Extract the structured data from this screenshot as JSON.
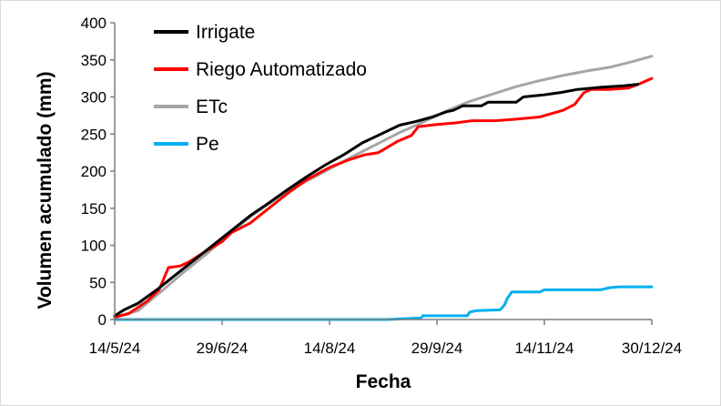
{
  "chart_data": {
    "type": "line",
    "title": "",
    "xlabel": "Fecha",
    "ylabel": "Volumen acumulado (mm)",
    "ylim": [
      0,
      400
    ],
    "yticks": [
      0,
      50,
      100,
      150,
      200,
      250,
      300,
      350,
      400
    ],
    "xlim": [
      "2024-05-14",
      "2024-12-30"
    ],
    "xticks": [
      {
        "date": "2024-05-14",
        "label": "14/5/24"
      },
      {
        "date": "2024-06-29",
        "label": "29/6/24"
      },
      {
        "date": "2024-08-14",
        "label": "14/8/24"
      },
      {
        "date": "2024-09-29",
        "label": "29/9/24"
      },
      {
        "date": "2024-11-14",
        "label": "14/11/24"
      },
      {
        "date": "2024-12-30",
        "label": "30/12/24"
      }
    ],
    "grid": false,
    "legend_position": "top-left",
    "series": [
      {
        "name": "Irrigate",
        "color": "#000000",
        "points": [
          [
            "2024-05-14",
            5
          ],
          [
            "2024-05-18",
            13
          ],
          [
            "2024-05-24",
            22
          ],
          [
            "2024-06-01",
            40
          ],
          [
            "2024-06-09",
            60
          ],
          [
            "2024-06-17",
            80
          ],
          [
            "2024-06-25",
            100
          ],
          [
            "2024-07-03",
            120
          ],
          [
            "2024-07-11",
            140
          ],
          [
            "2024-07-19",
            157
          ],
          [
            "2024-07-27",
            175
          ],
          [
            "2024-08-04",
            192
          ],
          [
            "2024-08-12",
            208
          ],
          [
            "2024-08-20",
            222
          ],
          [
            "2024-08-28",
            238
          ],
          [
            "2024-09-05",
            250
          ],
          [
            "2024-09-13",
            262
          ],
          [
            "2024-09-20",
            267
          ],
          [
            "2024-09-27",
            273
          ],
          [
            "2024-10-03",
            280
          ],
          [
            "2024-10-06",
            282
          ],
          [
            "2024-10-10",
            288
          ],
          [
            "2024-10-18",
            288
          ],
          [
            "2024-10-21",
            293
          ],
          [
            "2024-11-02",
            293
          ],
          [
            "2024-11-05",
            300
          ],
          [
            "2024-11-14",
            303
          ],
          [
            "2024-11-21",
            306
          ],
          [
            "2024-11-28",
            310
          ],
          [
            "2024-12-08",
            313
          ],
          [
            "2024-12-18",
            315
          ],
          [
            "2024-12-24",
            317
          ]
        ]
      },
      {
        "name": "Riego Automatizado",
        "color": "#ff0000",
        "points": [
          [
            "2024-05-14",
            3
          ],
          [
            "2024-05-20",
            8
          ],
          [
            "2024-05-28",
            25
          ],
          [
            "2024-06-02",
            40
          ],
          [
            "2024-06-04",
            55
          ],
          [
            "2024-06-06",
            70
          ],
          [
            "2024-06-11",
            72
          ],
          [
            "2024-06-15",
            78
          ],
          [
            "2024-06-21",
            90
          ],
          [
            "2024-06-29",
            105
          ],
          [
            "2024-07-03",
            117
          ],
          [
            "2024-07-11",
            130
          ],
          [
            "2024-07-19",
            150
          ],
          [
            "2024-07-27",
            170
          ],
          [
            "2024-08-04",
            188
          ],
          [
            "2024-08-14",
            205
          ],
          [
            "2024-08-22",
            215
          ],
          [
            "2024-08-29",
            222
          ],
          [
            "2024-09-04",
            225
          ],
          [
            "2024-09-12",
            240
          ],
          [
            "2024-09-18",
            248
          ],
          [
            "2024-09-21",
            260
          ],
          [
            "2024-09-29",
            263
          ],
          [
            "2024-10-07",
            265
          ],
          [
            "2024-10-14",
            268
          ],
          [
            "2024-10-24",
            268
          ],
          [
            "2024-11-02",
            270
          ],
          [
            "2024-11-12",
            273
          ],
          [
            "2024-11-22",
            282
          ],
          [
            "2024-11-27",
            290
          ],
          [
            "2024-12-01",
            306
          ],
          [
            "2024-12-04",
            310
          ],
          [
            "2024-12-12",
            310
          ],
          [
            "2024-12-20",
            312
          ],
          [
            "2024-12-25",
            318
          ],
          [
            "2024-12-30",
            325
          ]
        ]
      },
      {
        "name": "ETc",
        "color": "#a6a6a6",
        "points": [
          [
            "2024-05-14",
            3
          ],
          [
            "2024-05-24",
            12
          ],
          [
            "2024-06-03",
            38
          ],
          [
            "2024-06-13",
            65
          ],
          [
            "2024-06-23",
            90
          ],
          [
            "2024-07-03",
            118
          ],
          [
            "2024-07-13",
            143
          ],
          [
            "2024-07-23",
            165
          ],
          [
            "2024-08-02",
            183
          ],
          [
            "2024-08-14",
            203
          ],
          [
            "2024-08-24",
            220
          ],
          [
            "2024-09-03",
            236
          ],
          [
            "2024-09-13",
            252
          ],
          [
            "2024-09-23",
            266
          ],
          [
            "2024-10-03",
            281
          ],
          [
            "2024-10-13",
            294
          ],
          [
            "2024-10-23",
            304
          ],
          [
            "2024-11-02",
            314
          ],
          [
            "2024-11-12",
            322
          ],
          [
            "2024-11-22",
            329
          ],
          [
            "2024-12-02",
            335
          ],
          [
            "2024-12-12",
            340
          ],
          [
            "2024-12-22",
            348
          ],
          [
            "2024-12-30",
            355
          ]
        ]
      },
      {
        "name": "Pe",
        "color": "#00b0f0",
        "points": [
          [
            "2024-05-14",
            0
          ],
          [
            "2024-09-08",
            0
          ],
          [
            "2024-09-14",
            1
          ],
          [
            "2024-09-22",
            2
          ],
          [
            "2024-09-23",
            5
          ],
          [
            "2024-10-12",
            5
          ],
          [
            "2024-10-13",
            10
          ],
          [
            "2024-10-16",
            12
          ],
          [
            "2024-10-26",
            13
          ],
          [
            "2024-10-28",
            20
          ],
          [
            "2024-10-29",
            28
          ],
          [
            "2024-10-31",
            37
          ],
          [
            "2024-11-12",
            37
          ],
          [
            "2024-11-14",
            40
          ],
          [
            "2024-12-08",
            40
          ],
          [
            "2024-12-12",
            43
          ],
          [
            "2024-12-16",
            44
          ],
          [
            "2024-12-30",
            44
          ]
        ]
      }
    ]
  }
}
